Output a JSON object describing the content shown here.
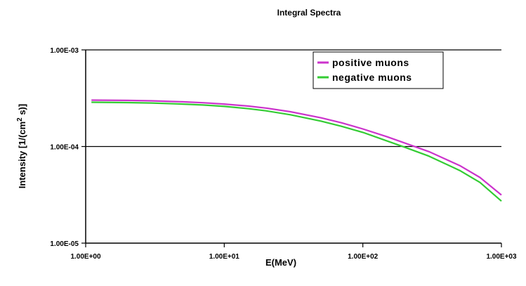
{
  "chart_data": {
    "type": "line",
    "title": "Integral Spectra",
    "xlabel": "E(MeV)",
    "ylabel": "Intensity  [1/(cm",
    "ylabel_superscript": "2",
    "ylabel_suffix": " s)]",
    "x_scale": "log",
    "y_scale": "log",
    "xlim": [
      1,
      1000
    ],
    "ylim": [
      1e-05,
      0.001
    ],
    "x_ticks": [
      1,
      10,
      100,
      1000
    ],
    "x_tick_labels": [
      "1.00E+00",
      "1.00E+01",
      "1.00E+02",
      "1.00E+03"
    ],
    "y_ticks": [
      1e-05,
      0.0001,
      0.001
    ],
    "y_tick_labels": [
      "1.00E-05",
      "1.00E-04",
      "1.00E-03"
    ],
    "grid": "horizontal major lines",
    "legend_position": "top-right",
    "series": [
      {
        "name": "positive muons",
        "color": "#cc33cc",
        "x": [
          1.1,
          2,
          3,
          5,
          7,
          10,
          15,
          20,
          30,
          50,
          70,
          100,
          150,
          200,
          300,
          500,
          700,
          1000
        ],
        "y": [
          0.000302,
          0.0003,
          0.000297,
          0.00029,
          0.000284,
          0.000275,
          0.000262,
          0.00025,
          0.000229,
          0.000198,
          0.000176,
          0.000152,
          0.000126,
          0.000109,
          8.85e-05,
          6.35e-05,
          4.79e-05,
          3.15e-05
        ]
      },
      {
        "name": "negative muons",
        "color": "#33cc33",
        "x": [
          1.1,
          2,
          3,
          5,
          7,
          10,
          15,
          20,
          30,
          50,
          70,
          100,
          150,
          200,
          300,
          500,
          700,
          1000
        ],
        "y": [
          0.000287,
          0.000285,
          0.000282,
          0.000275,
          0.000269,
          0.00026,
          0.000246,
          0.000234,
          0.000213,
          0.000183,
          0.000162,
          0.00014,
          0.000114,
          9.85e-05,
          7.95e-05,
          5.65e-05,
          4.25e-05,
          2.72e-05
        ]
      }
    ]
  }
}
